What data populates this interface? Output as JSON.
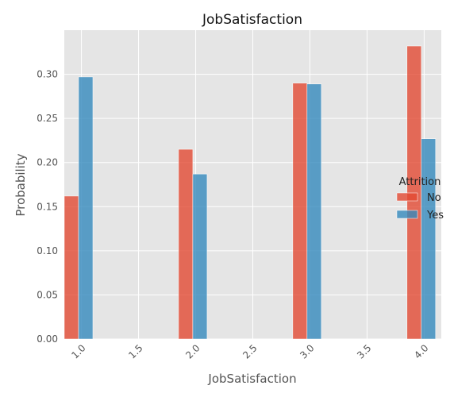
{
  "chart_data": {
    "type": "bar",
    "title": "JobSatisfaction",
    "xlabel": "JobSatisfaction",
    "ylabel": "Probability",
    "xlim": [
      0.85,
      4.15
    ],
    "ylim": [
      0,
      0.35
    ],
    "x_ticks": [
      "1.0",
      "1.5",
      "2.0",
      "2.5",
      "3.0",
      "3.5",
      "4.0"
    ],
    "y_ticks": [
      "0.00",
      "0.05",
      "0.10",
      "0.15",
      "0.20",
      "0.25",
      "0.30"
    ],
    "grid": true,
    "legend": {
      "title": "Attrition",
      "placement": "right"
    },
    "categories": [
      1,
      2,
      3,
      4
    ],
    "series": [
      {
        "name": "No",
        "color": "#e24a33",
        "values": [
          0.162,
          0.215,
          0.29,
          0.332
        ]
      },
      {
        "name": "Yes",
        "color": "#348abd",
        "values": [
          0.297,
          0.187,
          0.289,
          0.227
        ]
      }
    ]
  }
}
